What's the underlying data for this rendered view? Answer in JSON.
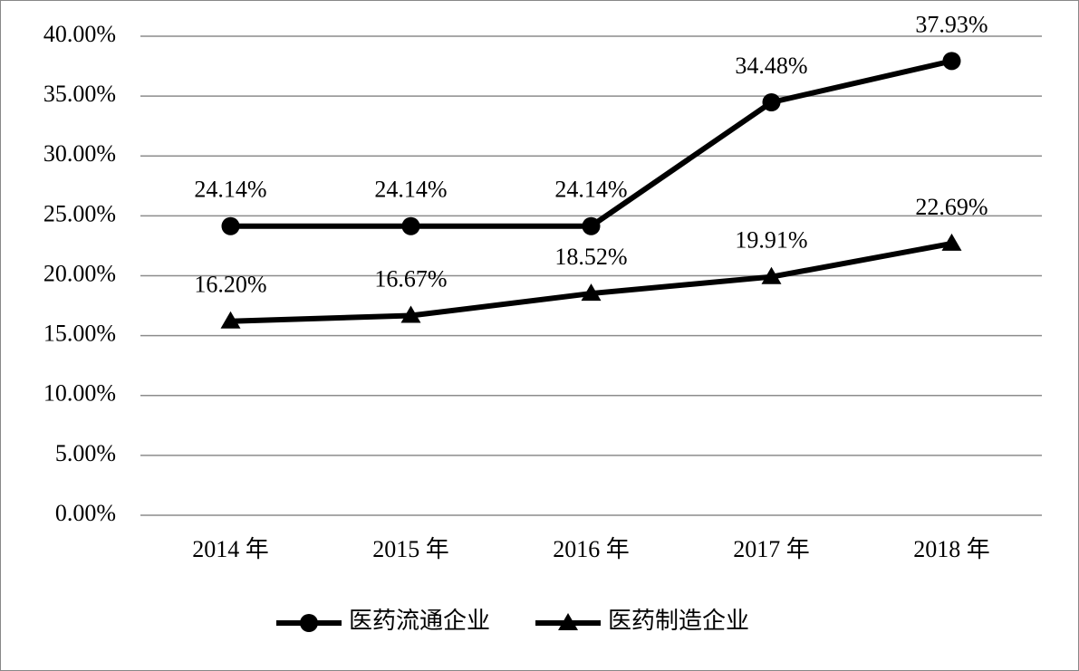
{
  "chart_data": {
    "type": "line",
    "categories": [
      "2014 年",
      "2015 年",
      "2016 年",
      "2017 年",
      "2018 年"
    ],
    "series": [
      {
        "name": "医药流通企业",
        "color": "#000000",
        "marker": "circle",
        "values": [
          24.14,
          24.14,
          24.14,
          34.48,
          37.93
        ],
        "value_labels": [
          "24.14%",
          "24.14%",
          "24.14%",
          "34.48%",
          "37.93%"
        ]
      },
      {
        "name": "医药制造企业",
        "color": "#000000",
        "marker": "triangle",
        "values": [
          16.2,
          16.67,
          18.52,
          19.91,
          22.69
        ],
        "value_labels": [
          "16.20%",
          "16.67%",
          "18.52%",
          "19.91%",
          "22.69%"
        ]
      }
    ],
    "ylim": [
      0,
      40
    ],
    "yticks": [
      {
        "value": 0,
        "label": "0.00%"
      },
      {
        "value": 5,
        "label": "5.00%"
      },
      {
        "value": 10,
        "label": "10.00%"
      },
      {
        "value": 15,
        "label": "15.00%"
      },
      {
        "value": 20,
        "label": "20.00%"
      },
      {
        "value": 25,
        "label": "25.00%"
      },
      {
        "value": 30,
        "label": "30.00%"
      },
      {
        "value": 35,
        "label": "35.00%"
      },
      {
        "value": 40,
        "label": "40.00%"
      }
    ],
    "grid": true,
    "legend": "bottom"
  }
}
